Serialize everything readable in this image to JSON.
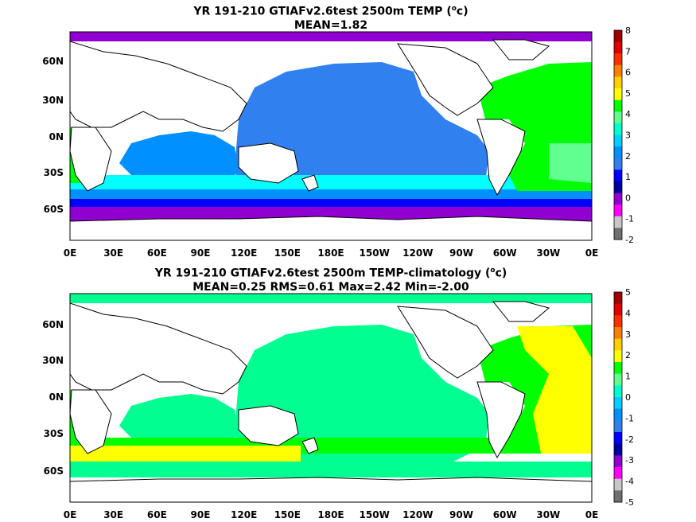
{
  "panels": [
    {
      "title_line1_pre": "YR 191-210 GTIAFv2.6test 2500m TEMP (",
      "title_line1_unit_sup": "o",
      "title_line1_post": "c)",
      "title_line2": "MEAN=1.82",
      "colorbar_labels": [
        "8",
        "7",
        "6",
        "5",
        "4",
        "3",
        "2",
        "1",
        "0",
        "-1",
        "-2"
      ],
      "colorbar_colors": [
        "#a00000",
        "#e00000",
        "#ff3000",
        "#ff8000",
        "#ffd000",
        "#ffff00",
        "#00ff00",
        "#60ff90",
        "#00ffd0",
        "#00d0ff",
        "#0090ff",
        "#3080f0",
        "#0000ff",
        "#0000a0",
        "#9000d0",
        "#ff00ff",
        "#c8c8c8",
        "#707070"
      ]
    },
    {
      "title_line1_pre": "YR 191-210 GTIAFv2.6test 2500m TEMP-climatology (",
      "title_line1_unit_sup": "o",
      "title_line1_post": "c)",
      "title_line2": "MEAN=0.25   RMS=0.61   Max=2.42   Min=-2.00",
      "colorbar_labels": [
        "5",
        "4",
        "3",
        "2",
        "1",
        "0",
        "-1",
        "-2",
        "-3",
        "-4",
        "-5"
      ],
      "colorbar_colors": [
        "#a00000",
        "#e00000",
        "#ff3000",
        "#ff8000",
        "#ffd000",
        "#ffff00",
        "#00ff00",
        "#60ff90",
        "#00ffd0",
        "#00d0ff",
        "#0090ff",
        "#3080f0",
        "#0000ff",
        "#0000a0",
        "#9000d0",
        "#ff00ff",
        "#c8c8c8",
        "#707070"
      ]
    }
  ],
  "x_ticks": [
    "0E",
    "30E",
    "60E",
    "90E",
    "120E",
    "150E",
    "180E",
    "150W",
    "120W",
    "90W",
    "60W",
    "30W",
    "0E"
  ],
  "y_ticks": [
    "60N",
    "30N",
    "0N",
    "30S",
    "60S"
  ],
  "colors": {
    "pacific_top": "#3080f0",
    "indian_top": "#0090ff",
    "atlantic_top": "#00ff00",
    "southern_top": "#00ffff",
    "antarctic_top": "#9000d0",
    "anom_pacific": "#00ff90",
    "anom_atlantic": "#ffff00",
    "anom_green": "#00ff00"
  }
}
